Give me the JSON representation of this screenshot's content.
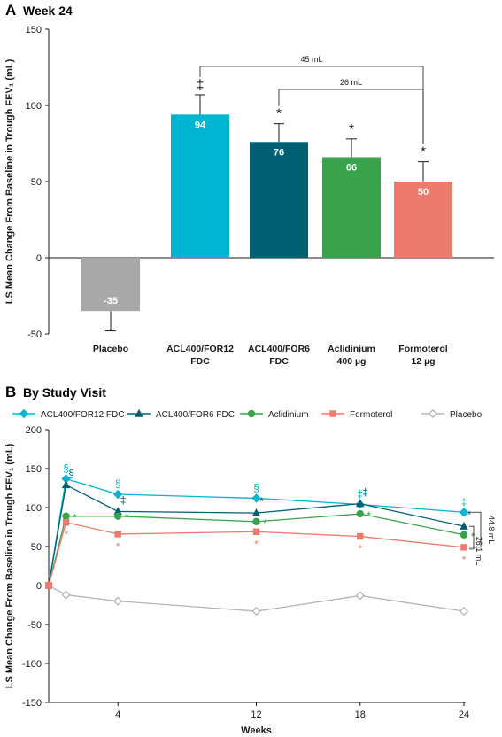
{
  "panel_a": {
    "letter": "A",
    "title": "Week 24",
    "chart_data": {
      "type": "bar",
      "ylabel": "LS Mean Change From Baseline in Trough FEV₁ (mL)",
      "ylim": [
        -50,
        150
      ],
      "yticks": [
        -50,
        0,
        50,
        100,
        150
      ],
      "categories": [
        {
          "line1": "Placebo",
          "line2": ""
        },
        {
          "line1": "ACL400/FOR12",
          "line2": "FDC"
        },
        {
          "line1": "ACL400/FOR6",
          "line2": "FDC"
        },
        {
          "line1": "Aclidinium",
          "line2": "400 µg"
        },
        {
          "line1": "Formoterol",
          "line2": "12 µg"
        }
      ],
      "values": [
        -35,
        94,
        76,
        66,
        50
      ],
      "value_labels": [
        "-35",
        "94",
        "76",
        "66",
        "50"
      ],
      "error_bars": [
        13,
        13,
        12,
        12,
        13
      ],
      "significance": [
        "",
        "‡",
        "*",
        "*",
        "*"
      ],
      "colors": [
        "#a8a8a8",
        "#00b5d1",
        "#005f73",
        "#3aa24b",
        "#ee7a6b"
      ],
      "brackets": [
        {
          "label": "45 mL",
          "from": 1,
          "to": 4
        },
        {
          "label": "26 mL",
          "from": 2,
          "to": 4
        }
      ]
    }
  },
  "panel_b": {
    "letter": "B",
    "title": "By Study Visit",
    "chart_data": {
      "type": "line",
      "xlabel": "Weeks",
      "ylabel": "LS Mean Change From Baseline in Trough FEV₁ (mL)",
      "ylim": [
        -150,
        200
      ],
      "yticks": [
        -150,
        -100,
        -50,
        0,
        50,
        100,
        150,
        200
      ],
      "xlim": [
        0,
        24
      ],
      "xticks": [
        4,
        12,
        18,
        24
      ],
      "x": [
        0,
        1,
        4,
        12,
        18,
        24
      ],
      "series": [
        {
          "name": "ACL400/FOR12 FDC",
          "color": "#00b5d1",
          "marker": "diamond",
          "values": [
            0,
            137,
            117,
            112,
            104,
            94
          ],
          "marks": [
            "",
            "§",
            "§",
            "§",
            "‡",
            "‡"
          ]
        },
        {
          "name": "ACL400/FOR6 FDC",
          "color": "#005f73",
          "marker": "triangle",
          "values": [
            0,
            129,
            95,
            93,
            105,
            76
          ],
          "marks": [
            "",
            "§",
            "‡",
            "*",
            "‡",
            "*"
          ]
        },
        {
          "name": "Aclidinium",
          "color": "#3aa24b",
          "marker": "circle",
          "values": [
            0,
            89,
            89,
            82,
            92,
            65
          ],
          "marks": [
            "",
            "*",
            "*",
            "*",
            "*",
            "*"
          ]
        },
        {
          "name": "Formoterol",
          "color": "#ee7a6b",
          "marker": "square",
          "values": [
            0,
            81,
            66,
            69,
            63,
            49
          ],
          "marks": [
            "",
            "*",
            "*",
            "*",
            "*",
            "*"
          ]
        },
        {
          "name": "Placebo",
          "color": "#b5b5b5",
          "marker": "open-diamond",
          "values": [
            0,
            -12,
            -20,
            -33,
            -13,
            -33
          ],
          "marks": [
            "",
            "",
            "",
            "",
            "",
            ""
          ]
        }
      ],
      "brackets": [
        {
          "label": "44.8 mL"
        },
        {
          "label": "26.1 mL"
        }
      ]
    }
  }
}
